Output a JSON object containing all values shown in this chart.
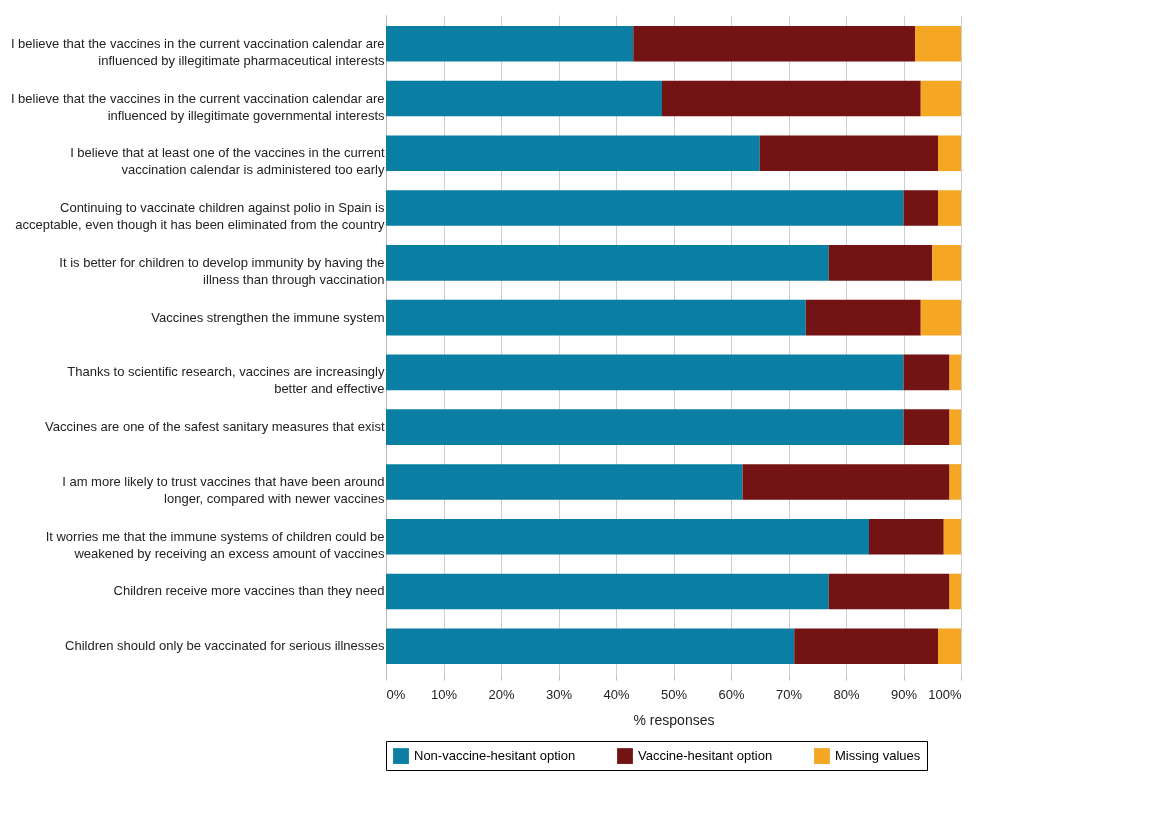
{
  "chart_data": {
    "type": "bar",
    "orientation": "horizontal",
    "stacked": true,
    "categories": [
      "I believe that the vaccines in the current vaccination calendar are influenced by illegitimate pharmaceutical interests",
      "I believe that the vaccines in the current vaccination calendar are influenced by illegitimate governmental interests",
      "I believe that at least one of the vaccines in the current vaccination calendar is administered too early",
      "Continuing to vaccinate children against polio in Spain is acceptable, even though it has been eliminated from the country",
      "It is better for children to develop immunity by having the illness than through vaccination",
      "Vaccines strengthen the immune system",
      "Thanks to scientific research, vaccines are increasingly better and effective",
      "Vaccines are one of the safest sanitary measures that exist",
      "I am more likely to trust vaccines that have been around longer, compared with newer vaccines",
      "It worries me that the immune systems of children could be weakened by receiving an excess amount of vaccines",
      "Children receive more vaccines than they need",
      "Children should only be vaccinated for serious illnesses"
    ],
    "series": [
      {
        "name": "Non-vaccine-hesitant option",
        "color": "#0a7ea3",
        "values": [
          43,
          48,
          65,
          90,
          77,
          73,
          90,
          90,
          62,
          84,
          77,
          71
        ]
      },
      {
        "name": "Vaccine-hesitant option",
        "color": "#731313",
        "values": [
          49,
          45,
          31,
          6,
          18,
          20,
          8,
          8,
          36,
          13,
          21,
          25
        ]
      },
      {
        "name": "Missing values",
        "color": "#f5a623",
        "values": [
          8,
          7,
          4,
          4,
          5,
          7,
          2,
          2,
          2,
          3,
          2,
          4
        ]
      }
    ],
    "xlabel": "% responses",
    "xlim": [
      0,
      100
    ],
    "xticks": [
      {
        "value": 0,
        "label": "0%"
      },
      {
        "value": 10,
        "label": "10%"
      },
      {
        "value": 20,
        "label": "20%"
      },
      {
        "value": 30,
        "label": "30%"
      },
      {
        "value": 40,
        "label": "40%"
      },
      {
        "value": 50,
        "label": "50%"
      },
      {
        "value": 60,
        "label": "60%"
      },
      {
        "value": 70,
        "label": "70%"
      },
      {
        "value": 80,
        "label": "80%"
      },
      {
        "value": 90,
        "label": "90%"
      },
      {
        "value": 100,
        "label": "100%"
      }
    ],
    "grid": "x",
    "legend": "bottom"
  }
}
